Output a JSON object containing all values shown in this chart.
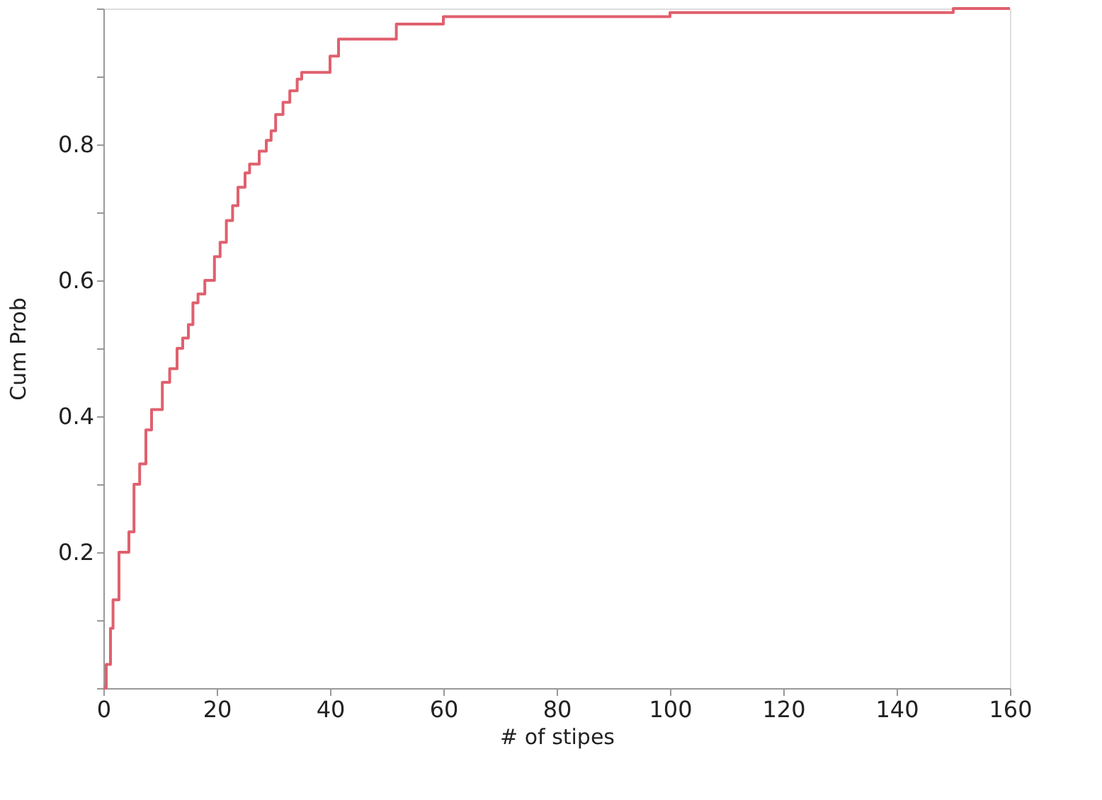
{
  "chart_data": {
    "type": "step",
    "xlabel": "# of stipes",
    "ylabel": "Cum Prob",
    "x": [
      0,
      0.5,
      1.25,
      1.7,
      2.75,
      4.5,
      5.4,
      6.4,
      7.5,
      8.5,
      10.4,
      11.7,
      13,
      14,
      15,
      15.8,
      16.7,
      17.9,
      19.6,
      20.6,
      21.7,
      22.8,
      23.75,
      25,
      25.8,
      27.5,
      28.75,
      29.6,
      30.4,
      31.7,
      32.9,
      34.2,
      35,
      40,
      41.5,
      51.7,
      60,
      100,
      150,
      160
    ],
    "series": [
      {
        "color": "#e0606e",
        "values": [
          0,
          0.035,
          0.088,
          0.13,
          0.2,
          0.23,
          0.3,
          0.33,
          0.38,
          0.41,
          0.45,
          0.47,
          0.5,
          0.515,
          0.535,
          0.567,
          0.58,
          0.6,
          0.635,
          0.656,
          0.688,
          0.71,
          0.737,
          0.758,
          0.771,
          0.79,
          0.806,
          0.82,
          0.844,
          0.862,
          0.879,
          0.896,
          0.906,
          0.93,
          0.955,
          0.977,
          0.988,
          0.994,
          1.0,
          1.0
        ]
      }
    ],
    "xlim": [
      0,
      160
    ],
    "xticks": [
      0,
      20,
      40,
      60,
      80,
      100,
      120,
      140,
      160
    ],
    "ylim": [
      0,
      1
    ],
    "yticks": [
      {
        "value": 0,
        "label": null
      },
      {
        "value": 0.1,
        "label": null
      },
      0.2,
      {
        "value": 0.3,
        "label": null
      },
      0.4,
      {
        "value": 0.5,
        "label": null
      },
      0.6,
      {
        "value": 0.7,
        "label": null
      },
      0.8,
      {
        "value": 0.9,
        "label": null
      },
      {
        "value": 1.0,
        "label": null
      }
    ],
    "grid": false,
    "legend": false,
    "marker": "none",
    "line_style": "solid"
  }
}
